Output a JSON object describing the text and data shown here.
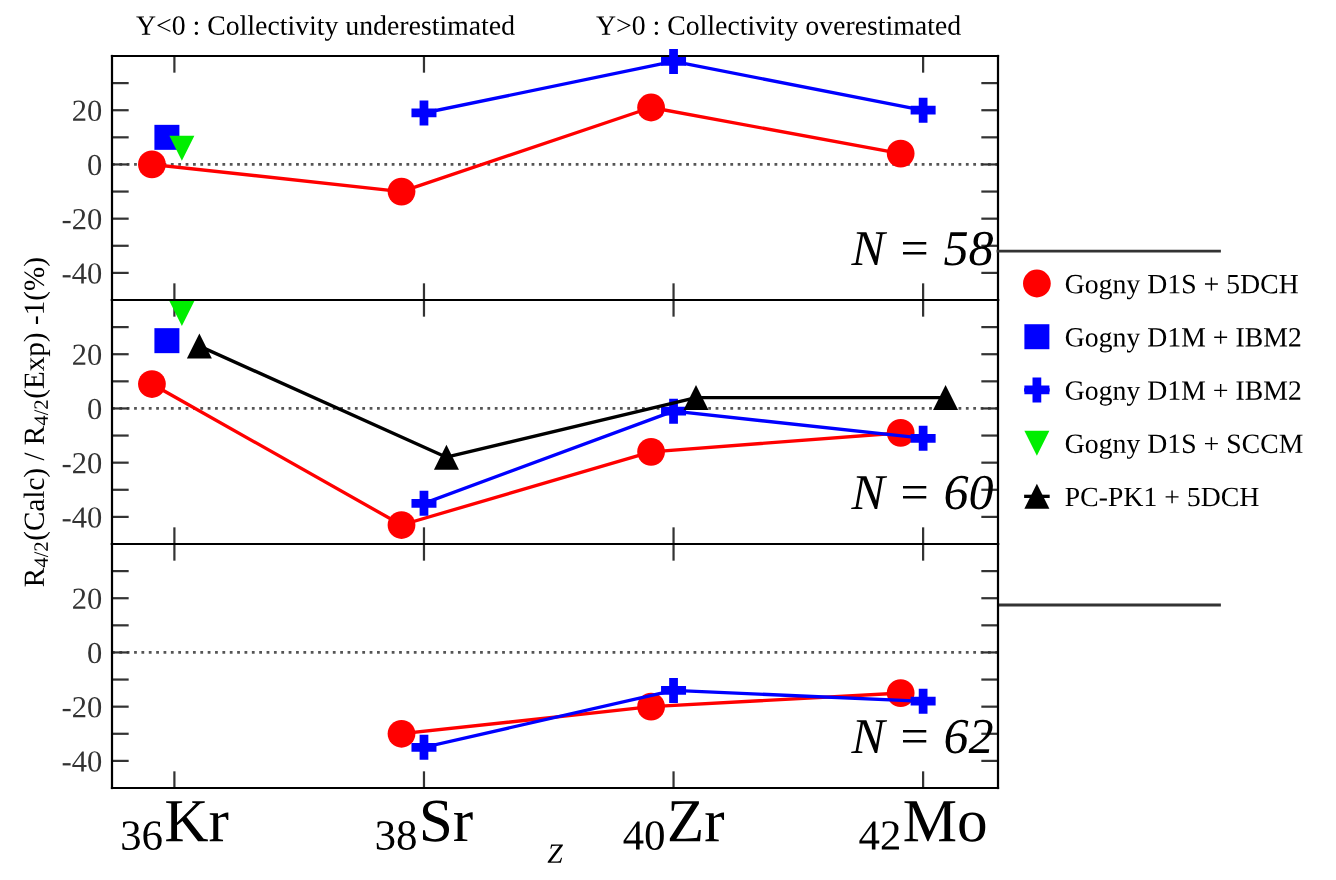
{
  "chart_data": [
    {
      "type": "line",
      "annotations": [
        "Y<0 : Collectivity underestimated",
        "Y>0 : Collectivity overestimated",
        "N = 58"
      ],
      "xlim": [
        35.5,
        42.6
      ],
      "xticks": [
        36,
        38,
        40,
        42
      ],
      "ylim": [
        -50,
        40
      ],
      "yticks": [
        {
          "value": -40,
          "label": "-40"
        },
        {
          "value": -30,
          "label": null
        },
        {
          "value": -20,
          "label": "-20"
        },
        {
          "value": -10,
          "label": null
        },
        0,
        {
          "value": 10,
          "label": null
        },
        20,
        {
          "value": 30,
          "label": null
        }
      ],
      "tick_labels": "y",
      "ref_lines": [
        {
          "axis": "y",
          "value": 0,
          "color": "#555555",
          "line_style": "dotted"
        }
      ],
      "series": [
        {
          "marker": "circle",
          "color": "#ff0000",
          "x": [
            35.82,
            37.82,
            39.82,
            41.82
          ],
          "values": [
            0,
            -10,
            21,
            4
          ]
        },
        {
          "type": "scatter",
          "marker": "square",
          "color": "#0000ff",
          "x": [
            35.94
          ],
          "values": [
            10
          ]
        },
        {
          "marker": "cross",
          "color": "#0000ff",
          "x": [
            38,
            40,
            42
          ],
          "values": [
            19,
            38,
            20
          ]
        },
        {
          "type": "scatter",
          "marker": "triangle_down",
          "color": "#00ee00",
          "x": [
            36.06
          ],
          "values": [
            6
          ]
        }
      ]
    },
    {
      "type": "line",
      "ylabel": "R$_{4/2}$(Calc) / R$_{4/2}$(Exp) -1(%)",
      "annotations": [
        "N = 60"
      ],
      "xlim": [
        35.5,
        42.6
      ],
      "xticks": [
        36,
        38,
        40,
        42
      ],
      "ylim": [
        -50,
        40
      ],
      "yticks": [
        {
          "value": -40,
          "label": "-40"
        },
        {
          "value": -30,
          "label": null
        },
        {
          "value": -20,
          "label": "-20"
        },
        {
          "value": -10,
          "label": null
        },
        0,
        {
          "value": 10,
          "label": null
        },
        20,
        {
          "value": 30,
          "label": null
        }
      ],
      "tick_labels": "y",
      "legend": "right",
      "ref_lines": [
        {
          "axis": "y",
          "value": 0,
          "color": "#555555",
          "line_style": "dotted"
        }
      ],
      "series": [
        {
          "name": "Gogny D1S + 5DCH",
          "marker": "circle",
          "color": "#ff0000",
          "x": [
            35.82,
            37.82,
            39.82,
            41.82
          ],
          "values": [
            9,
            -43,
            -16,
            -9
          ]
        },
        {
          "type": "scatter",
          "name": "Gogny D1M + IBM2",
          "marker": "square",
          "color": "#0000ff",
          "x": [
            35.94
          ],
          "values": [
            25
          ]
        },
        {
          "name": "Gogny D1M + IBM2",
          "marker": "cross",
          "color": "#0000ff",
          "x": [
            38,
            40,
            42
          ],
          "values": [
            -35,
            -1,
            -11
          ]
        },
        {
          "type": "scatter",
          "name": "Gogny D1S + SCCM",
          "marker": "triangle_down",
          "color": "#00ee00",
          "x": [
            36.06
          ],
          "values": [
            35
          ]
        },
        {
          "name": "PC-PK1 + 5DCH",
          "marker": "triangle",
          "color": "#000000",
          "x": [
            36.2,
            38.18,
            40.18,
            42.18
          ],
          "values": [
            23,
            -18,
            4,
            4
          ]
        }
      ]
    },
    {
      "type": "line",
      "xlabel": "Z",
      "annotations": [
        "N = 62"
      ],
      "xlim": [
        35.5,
        42.6
      ],
      "xticks": [
        {
          "value": 36,
          "label": "$_{36}$Kr"
        },
        {
          "value": 38,
          "label": "$_{38}$Sr"
        },
        {
          "value": 40,
          "label": "$_{40}$Zr"
        },
        {
          "value": 42,
          "label": "$_{42}$Mo"
        }
      ],
      "ylim": [
        -50,
        40
      ],
      "yticks": [
        {
          "value": -40,
          "label": "-40"
        },
        {
          "value": -30,
          "label": null
        },
        {
          "value": -20,
          "label": "-20"
        },
        {
          "value": -10,
          "label": null
        },
        0,
        {
          "value": 10,
          "label": null
        },
        20,
        {
          "value": 30,
          "label": null
        }
      ],
      "ref_lines": [
        {
          "axis": "y",
          "value": 0,
          "color": "#555555",
          "line_style": "dotted"
        }
      ],
      "series": [
        {
          "marker": "circle",
          "color": "#ff0000",
          "x": [
            37.82,
            39.82,
            41.82
          ],
          "values": [
            -30,
            -20,
            -15
          ]
        },
        {
          "marker": "cross",
          "color": "#0000ff",
          "x": [
            38,
            40,
            42
          ],
          "values": [
            -35,
            -14,
            -18
          ]
        }
      ]
    }
  ]
}
